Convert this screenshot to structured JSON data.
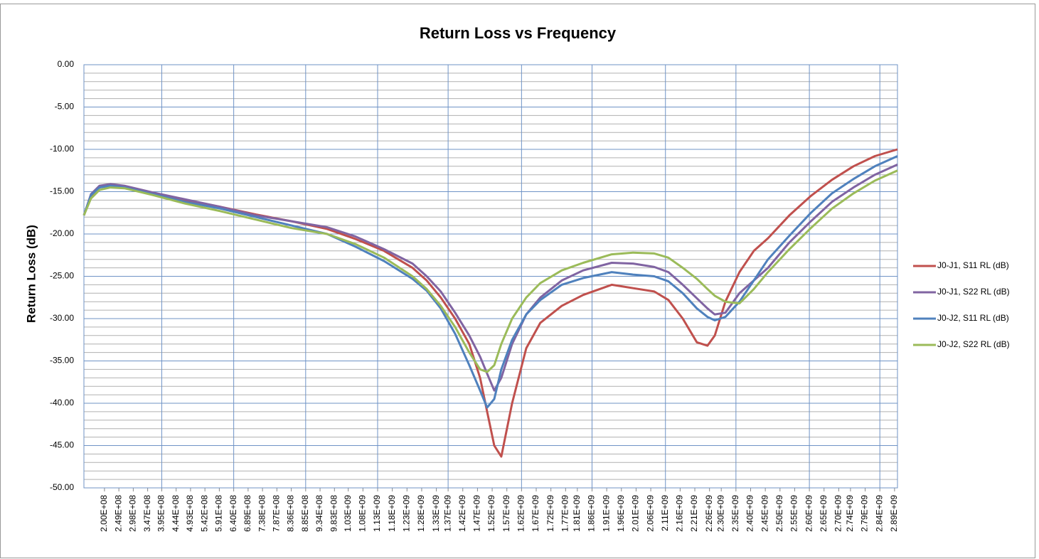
{
  "chart_data": {
    "type": "line",
    "title": "Return Loss vs Frequency",
    "y_label": "Return Loss (dB)",
    "x": [
      130000000.0,
      154000000.0,
      183000000.0,
      220000000.0,
      268000000.0,
      365000000.0,
      474000000.0,
      595000000.0,
      716000000.0,
      837000000.0,
      958000000.0,
      1055000000.0,
      1152000000.0,
      1249000000.0,
      1297000000.0,
      1345000000.0,
      1394000000.0,
      1442000000.0,
      1479000000.0,
      1503000000.0,
      1527000000.0,
      1551000000.0,
      1588000000.0,
      1636000000.0,
      1684000000.0,
      1757000000.0,
      1830000000.0,
      1927000000.0,
      2000000000.0,
      2072000000.0,
      2120000000.0,
      2169000000.0,
      2217000000.0,
      2253000000.0,
      2278000000.0,
      2314000000.0,
      2362000000.0,
      2411000000.0,
      2459000000.0,
      2532000000.0,
      2605000000.0,
      2677000000.0,
      2750000000.0,
      2823000000.0,
      2900000000.0
    ],
    "series": [
      {
        "name": "J0-J1, S11 RL (dB)",
        "color": "#c0504d",
        "values": [
          -17.8,
          -15.5,
          -14.5,
          -14.2,
          -14.4,
          -15.2,
          -16.0,
          -16.8,
          -17.7,
          -18.5,
          -19.4,
          -20.6,
          -22.0,
          -24.0,
          -25.5,
          -27.5,
          -30.0,
          -33.0,
          -37.0,
          -41.0,
          -45.0,
          -46.3,
          -40.0,
          -33.5,
          -30.5,
          -28.5,
          -27.2,
          -26.0,
          -26.4,
          -26.8,
          -27.8,
          -30.0,
          -32.8,
          -33.2,
          -32.0,
          -28.0,
          -24.5,
          -22.0,
          -20.5,
          -17.8,
          -15.5,
          -13.6,
          -12.0,
          -10.8,
          -10.0
        ]
      },
      {
        "name": "J0-J1, S22 RL (dB)",
        "color": "#8064a2",
        "values": [
          -17.8,
          -15.3,
          -14.3,
          -14.1,
          -14.3,
          -15.1,
          -15.9,
          -16.8,
          -17.8,
          -18.5,
          -19.2,
          -20.3,
          -21.8,
          -23.5,
          -25.0,
          -26.8,
          -29.3,
          -32.0,
          -34.5,
          -36.5,
          -38.5,
          -37.0,
          -33.0,
          -29.5,
          -27.5,
          -25.5,
          -24.3,
          -23.4,
          -23.5,
          -23.9,
          -24.5,
          -26.0,
          -27.6,
          -28.8,
          -29.5,
          -29.3,
          -27.0,
          -25.5,
          -24.0,
          -21.0,
          -18.5,
          -16.2,
          -14.5,
          -13.0,
          -11.8
        ]
      },
      {
        "name": "J0-J2, S11 RL (dB)",
        "color": "#4f81bd",
        "values": [
          -17.8,
          -15.4,
          -14.5,
          -14.3,
          -14.5,
          -15.3,
          -16.2,
          -17.0,
          -18.0,
          -19.0,
          -20.0,
          -21.5,
          -23.2,
          -25.3,
          -26.7,
          -28.8,
          -31.8,
          -35.5,
          -38.5,
          -40.5,
          -39.5,
          -36.0,
          -32.5,
          -29.5,
          -27.8,
          -26.0,
          -25.2,
          -24.5,
          -24.8,
          -25.0,
          -25.6,
          -27.0,
          -28.8,
          -29.8,
          -30.2,
          -29.8,
          -28.0,
          -25.5,
          -23.0,
          -20.2,
          -17.5,
          -15.2,
          -13.5,
          -12.0,
          -10.8
        ]
      },
      {
        "name": "J0-J2, S22 RL (dB)",
        "color": "#9bbb59",
        "values": [
          -17.8,
          -15.8,
          -14.8,
          -14.5,
          -14.6,
          -15.4,
          -16.4,
          -17.3,
          -18.3,
          -19.3,
          -20.0,
          -21.2,
          -22.8,
          -25.0,
          -26.5,
          -28.5,
          -31.0,
          -34.0,
          -36.0,
          -36.3,
          -35.5,
          -33.0,
          -30.0,
          -27.5,
          -25.8,
          -24.3,
          -23.4,
          -22.4,
          -22.2,
          -22.3,
          -22.8,
          -24.0,
          -25.3,
          -26.5,
          -27.3,
          -28.0,
          -28.2,
          -26.5,
          -24.5,
          -21.8,
          -19.3,
          -17.0,
          -15.2,
          -13.7,
          -12.5
        ]
      }
    ],
    "xlim": [
      130000000.0,
      2900000000.0
    ],
    "xticks": [
      {
        "value": 200000000.0,
        "label": "2.00E+08"
      },
      {
        "value": 249000000.0,
        "label": "2.49E+08"
      },
      {
        "value": 298000000.0,
        "label": "2.98E+08"
      },
      {
        "value": 347000000.0,
        "label": "3.47E+08"
      },
      {
        "value": 395000000.0,
        "label": "3.95E+08"
      },
      {
        "value": 444000000.0,
        "label": "4.44E+08"
      },
      {
        "value": 493000000.0,
        "label": "4.93E+08"
      },
      {
        "value": 542000000.0,
        "label": "5.42E+08"
      },
      {
        "value": 591000000.0,
        "label": "5.91E+08"
      },
      {
        "value": 640000000.0,
        "label": "6.40E+08"
      },
      {
        "value": 689000000.0,
        "label": "6.89E+08"
      },
      {
        "value": 738000000.0,
        "label": "7.38E+08"
      },
      {
        "value": 787000000.0,
        "label": "7.87E+08"
      },
      {
        "value": 836000000.0,
        "label": "8.36E+08"
      },
      {
        "value": 885000000.0,
        "label": "8.85E+08"
      },
      {
        "value": 934000000.0,
        "label": "9.34E+08"
      },
      {
        "value": 983000000.0,
        "label": "9.83E+08"
      },
      {
        "value": 1030000000.0,
        "label": "1.03E+09"
      },
      {
        "value": 1080000000.0,
        "label": "1.08E+09"
      },
      {
        "value": 1130000000.0,
        "label": "1.13E+09"
      },
      {
        "value": 1180000000.0,
        "label": "1.18E+09"
      },
      {
        "value": 1230000000.0,
        "label": "1.23E+09"
      },
      {
        "value": 1280000000.0,
        "label": "1.28E+09"
      },
      {
        "value": 1330000000.0,
        "label": "1.33E+09"
      },
      {
        "value": 1370000000.0,
        "label": "1.37E+09"
      },
      {
        "value": 1420000000.0,
        "label": "1.42E+09"
      },
      {
        "value": 1470000000.0,
        "label": "1.47E+09"
      },
      {
        "value": 1520000000.0,
        "label": "1.52E+09"
      },
      {
        "value": 1570000000.0,
        "label": "1.57E+09"
      },
      {
        "value": 1620000000.0,
        "label": "1.62E+09"
      },
      {
        "value": 1670000000.0,
        "label": "1.67E+09"
      },
      {
        "value": 1720000000.0,
        "label": "1.72E+09"
      },
      {
        "value": 1770000000.0,
        "label": "1.77E+09"
      },
      {
        "value": 1810000000.0,
        "label": "1.81E+09"
      },
      {
        "value": 1860000000.0,
        "label": "1.86E+09"
      },
      {
        "value": 1910000000.0,
        "label": "1.91E+09"
      },
      {
        "value": 1960000000.0,
        "label": "1.96E+09"
      },
      {
        "value": 2010000000.0,
        "label": "2.01E+09"
      },
      {
        "value": 2060000000.0,
        "label": "2.06E+09"
      },
      {
        "value": 2110000000.0,
        "label": "2.11E+09"
      },
      {
        "value": 2160000000.0,
        "label": "2.16E+09"
      },
      {
        "value": 2210000000.0,
        "label": "2.21E+09"
      },
      {
        "value": 2260000000.0,
        "label": "2.26E+09"
      },
      {
        "value": 2300000000.0,
        "label": "2.30E+09"
      },
      {
        "value": 2350000000.0,
        "label": "2.35E+09"
      },
      {
        "value": 2400000000.0,
        "label": "2.40E+09"
      },
      {
        "value": 2450000000.0,
        "label": "2.45E+09"
      },
      {
        "value": 2500000000.0,
        "label": "2.50E+09"
      },
      {
        "value": 2550000000.0,
        "label": "2.55E+09"
      },
      {
        "value": 2600000000.0,
        "label": "2.60E+09"
      },
      {
        "value": 2650000000.0,
        "label": "2.65E+09"
      },
      {
        "value": 2700000000.0,
        "label": "2.70E+09"
      },
      {
        "value": 2740000000.0,
        "label": "2.74E+09"
      },
      {
        "value": 2790000000.0,
        "label": "2.79E+09"
      },
      {
        "value": 2840000000.0,
        "label": "2.84E+09"
      },
      {
        "value": 2890000000.0,
        "label": "2.89E+09"
      }
    ],
    "ylim": [
      -50,
      0
    ],
    "yticks": [
      {
        "value": 0,
        "label": "0.00"
      },
      {
        "value": -5,
        "label": "-5.00"
      },
      {
        "value": -10,
        "label": "-10.00"
      },
      {
        "value": -15,
        "label": "-15.00"
      },
      {
        "value": -20,
        "label": "-20.00"
      },
      {
        "value": -25,
        "label": "-25.00"
      },
      {
        "value": -30,
        "label": "-30.00"
      },
      {
        "value": -35,
        "label": "-35.00"
      },
      {
        "value": -40,
        "label": "-40.00"
      },
      {
        "value": -45,
        "label": "-45.00"
      },
      {
        "value": -50,
        "label": "-50.00"
      }
    ],
    "grid": true,
    "legend": "right"
  }
}
